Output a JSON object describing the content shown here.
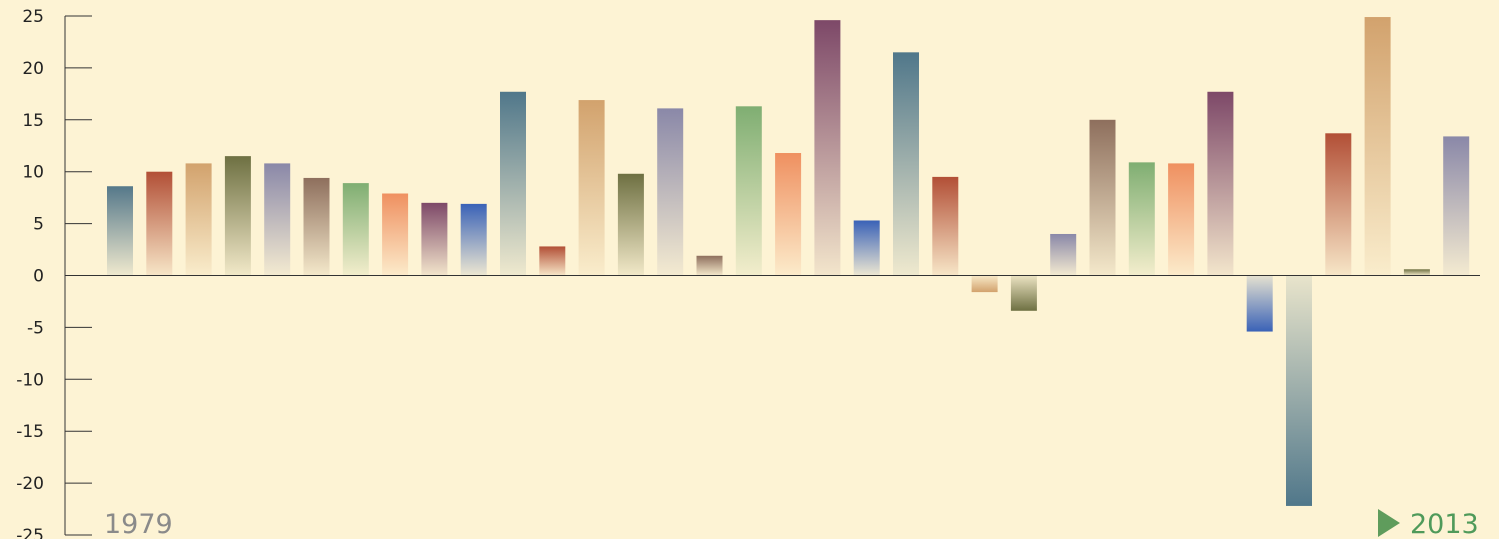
{
  "chart_data": {
    "type": "bar",
    "title": "",
    "xlabel": "",
    "ylabel": "",
    "x_start_label": "1979",
    "x_end_label": "2013",
    "ylim": [
      -25,
      25
    ],
    "yticks": [
      25,
      20,
      15,
      10,
      5,
      0,
      -5,
      -10,
      -15,
      -20,
      -25
    ],
    "grid": false,
    "legend": "none",
    "values": [
      8.6,
      10.0,
      10.8,
      11.5,
      10.8,
      9.4,
      8.9,
      7.9,
      7.0,
      6.9,
      17.7,
      2.8,
      16.9,
      9.8,
      16.1,
      1.9,
      16.3,
      11.8,
      24.6,
      5.3,
      21.5,
      9.5,
      -1.6,
      -3.4,
      4.0,
      15.0,
      10.9,
      10.8,
      17.7,
      -5.4,
      -22.2,
      13.7,
      24.9,
      0.6,
      13.4
    ],
    "colors": [
      "#55788a",
      "#b24f36",
      "#d2a26d",
      "#6e7042",
      "#8a88a8",
      "#8e6f5d",
      "#7fae72",
      "#ef9060",
      "#7d4868",
      "#3a62b7",
      "#50778a",
      "#b24f36",
      "#d2a26d",
      "#6e7042",
      "#8a88a8",
      "#8e6f5d",
      "#7fae72",
      "#ef9060",
      "#7d4868",
      "#3a62b7",
      "#50778a",
      "#b24f36",
      "#d2a26d",
      "#6e7042",
      "#8a88a8",
      "#8e6f5d",
      "#7fae72",
      "#ef9060",
      "#7d4868",
      "#3a62b7",
      "#50778a",
      "#b24f36",
      "#d2a26d",
      "#6e7042",
      "#8a88a8"
    ]
  },
  "arrow": {
    "start_color": "#c9c3b5",
    "end_color": "#5f9c5c"
  }
}
